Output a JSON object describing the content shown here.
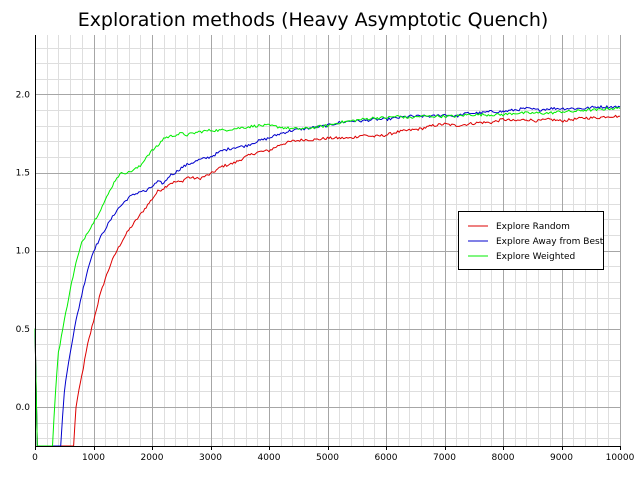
{
  "chart_data": {
    "type": "line",
    "title": "Exploration methods (Heavy Asymptotic Quench)",
    "xlabel": "",
    "ylabel": "",
    "xlim": [
      0,
      10000
    ],
    "ylim": [
      -0.25,
      2.38
    ],
    "x_ticks": [
      0,
      1000,
      2000,
      3000,
      4000,
      5000,
      6000,
      7000,
      8000,
      9000,
      10000
    ],
    "x_tick_labels": [
      "0",
      "1000",
      "2000",
      "3000",
      "4000",
      "5000",
      "6000",
      "7000",
      "8000",
      "9000",
      "10000"
    ],
    "y_ticks": [
      0.0,
      0.5,
      1.0,
      1.5,
      2.0
    ],
    "y_tick_labels": [
      "0.0",
      "0.5",
      "1.0",
      "1.5",
      "2.0"
    ],
    "x_minor_step": 200,
    "y_minor_step": 0.1,
    "grid": true,
    "legend_position": "right",
    "series": [
      {
        "name": "Explore Random",
        "color": "#dd0000",
        "x": [
          0,
          20,
          40,
          60,
          660,
          700,
          800,
          900,
          1000,
          1100,
          1200,
          1300,
          1400,
          1500,
          1600,
          1700,
          1800,
          1900,
          2000,
          2100,
          2200,
          2300,
          2400,
          2500,
          2600,
          2800,
          3000,
          3200,
          3400,
          3600,
          3800,
          4000,
          4200,
          4400,
          4600,
          4800,
          5000,
          5200,
          5400,
          5600,
          5800,
          6000,
          6200,
          6400,
          6600,
          6800,
          7000,
          7200,
          7400,
          7600,
          7800,
          8000,
          8200,
          8400,
          8600,
          8800,
          9000,
          9200,
          9400,
          9600,
          9800,
          10000
        ],
        "values": [
          0.5,
          0.1,
          -0.25,
          -0.25,
          -0.25,
          0.0,
          0.2,
          0.4,
          0.55,
          0.7,
          0.82,
          0.92,
          1.0,
          1.07,
          1.13,
          1.18,
          1.23,
          1.28,
          1.33,
          1.38,
          1.4,
          1.43,
          1.44,
          1.44,
          1.47,
          1.46,
          1.49,
          1.54,
          1.56,
          1.6,
          1.63,
          1.64,
          1.68,
          1.7,
          1.71,
          1.71,
          1.72,
          1.72,
          1.72,
          1.74,
          1.73,
          1.74,
          1.76,
          1.77,
          1.78,
          1.8,
          1.81,
          1.8,
          1.81,
          1.82,
          1.82,
          1.84,
          1.83,
          1.84,
          1.83,
          1.84,
          1.83,
          1.84,
          1.85,
          1.85,
          1.86,
          1.86
        ]
      },
      {
        "name": "Explore Away from Best",
        "color": "#0000cc",
        "x": [
          0,
          20,
          40,
          60,
          440,
          500,
          600,
          700,
          800,
          900,
          1000,
          1100,
          1200,
          1300,
          1400,
          1500,
          1600,
          1700,
          1800,
          1900,
          2000,
          2100,
          2200,
          2300,
          2400,
          2500,
          2600,
          2800,
          3000,
          3200,
          3400,
          3600,
          3800,
          4000,
          4200,
          4400,
          4600,
          4800,
          5000,
          5200,
          5400,
          5600,
          5800,
          6000,
          6200,
          6400,
          6600,
          6800,
          7000,
          7200,
          7400,
          7600,
          7800,
          8000,
          8200,
          8400,
          8600,
          8800,
          9000,
          9200,
          9400,
          9600,
          9800,
          10000
        ],
        "values": [
          0.5,
          0.1,
          -0.25,
          -0.25,
          -0.25,
          0.1,
          0.35,
          0.55,
          0.72,
          0.88,
          1.0,
          1.07,
          1.14,
          1.2,
          1.26,
          1.3,
          1.34,
          1.36,
          1.38,
          1.38,
          1.41,
          1.44,
          1.43,
          1.48,
          1.5,
          1.53,
          1.55,
          1.58,
          1.6,
          1.64,
          1.66,
          1.67,
          1.7,
          1.72,
          1.75,
          1.77,
          1.78,
          1.79,
          1.8,
          1.82,
          1.83,
          1.83,
          1.84,
          1.84,
          1.85,
          1.86,
          1.86,
          1.86,
          1.87,
          1.86,
          1.88,
          1.88,
          1.89,
          1.89,
          1.9,
          1.91,
          1.9,
          1.91,
          1.91,
          1.91,
          1.91,
          1.92,
          1.92,
          1.92
        ]
      },
      {
        "name": "Explore Weighted",
        "color": "#00ee00",
        "x": [
          0,
          20,
          40,
          60,
          300,
          350,
          400,
          500,
          600,
          700,
          800,
          900,
          1000,
          1100,
          1200,
          1300,
          1400,
          1500,
          1600,
          1700,
          1800,
          1900,
          2000,
          2100,
          2200,
          2300,
          2400,
          2500,
          2600,
          2800,
          3000,
          3200,
          3400,
          3600,
          3800,
          4000,
          4200,
          4400,
          4600,
          4800,
          5000,
          5200,
          5400,
          5600,
          5800,
          6000,
          6200,
          6400,
          6600,
          6800,
          7000,
          7200,
          7400,
          7600,
          7800,
          8000,
          8200,
          8400,
          8600,
          8800,
          9000,
          9200,
          9400,
          9600,
          9800,
          10000
        ],
        "values": [
          0.5,
          0.1,
          -0.25,
          -0.25,
          -0.25,
          0.1,
          0.35,
          0.55,
          0.75,
          0.92,
          1.05,
          1.12,
          1.18,
          1.25,
          1.32,
          1.4,
          1.47,
          1.5,
          1.5,
          1.52,
          1.54,
          1.6,
          1.64,
          1.67,
          1.72,
          1.73,
          1.74,
          1.75,
          1.74,
          1.76,
          1.77,
          1.77,
          1.78,
          1.79,
          1.8,
          1.8,
          1.79,
          1.78,
          1.78,
          1.79,
          1.8,
          1.82,
          1.83,
          1.84,
          1.85,
          1.85,
          1.86,
          1.85,
          1.86,
          1.86,
          1.86,
          1.86,
          1.87,
          1.87,
          1.87,
          1.87,
          1.88,
          1.88,
          1.88,
          1.88,
          1.89,
          1.89,
          1.9,
          1.9,
          1.91,
          1.91
        ]
      }
    ]
  }
}
